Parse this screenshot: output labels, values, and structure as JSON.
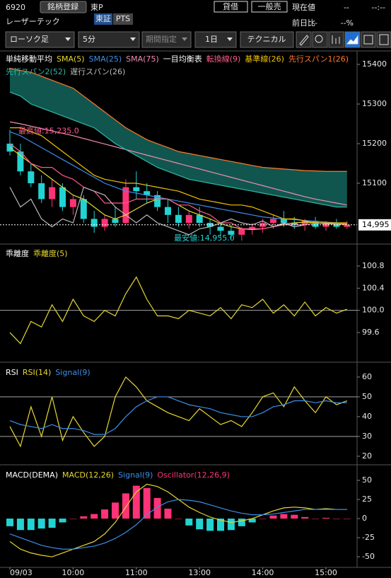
{
  "header": {
    "code": "6920",
    "register": "銘柄登録",
    "market": "東P",
    "lend": "貸借",
    "general": "一般売",
    "price_label": "現在値",
    "price": "--",
    "time": "--:--",
    "name": "レーザーテック",
    "tab1": "東証",
    "tab2": "PTS",
    "change_label": "前日比",
    "change": "--",
    "change_pct": "--%"
  },
  "toolbar": {
    "chart_type": "ローソク足",
    "interval": "5分",
    "period": "期間指定",
    "range": "1日",
    "technical": "テクニカル"
  },
  "chart_data": [
    {
      "type": "candlestick",
      "title": "単純移動平均",
      "ichimoku_title": "一目均衡表",
      "categories": [
        "09/03",
        null,
        null,
        null,
        null,
        null,
        "10:00",
        null,
        null,
        null,
        null,
        null,
        "11:00",
        null,
        null,
        null,
        null,
        null,
        "13:00",
        null,
        null,
        null,
        null,
        null,
        "14:00",
        null,
        null,
        null,
        null,
        null,
        "15:00",
        null,
        null
      ],
      "up_color": "#ff3377",
      "down_color": "#22d3d3",
      "ohlc": [
        [
          15200,
          15235,
          15170,
          15180
        ],
        [
          15180,
          15200,
          15120,
          15130
        ],
        [
          15130,
          15150,
          15090,
          15100
        ],
        [
          15100,
          15120,
          15050,
          15060
        ],
        [
          15060,
          15110,
          15040,
          15090
        ],
        [
          15090,
          15100,
          15030,
          15040
        ],
        [
          15040,
          15070,
          15020,
          15060
        ],
        [
          15060,
          15070,
          15000,
          15010
        ],
        [
          15010,
          15030,
          14975,
          14990
        ],
        [
          14990,
          15020,
          14980,
          15010
        ],
        [
          15010,
          15040,
          14990,
          15000
        ],
        [
          15000,
          15110,
          14995,
          15090
        ],
        [
          15090,
          15130,
          15060,
          15080
        ],
        [
          15080,
          15100,
          15050,
          15070
        ],
        [
          15070,
          15080,
          15030,
          15040
        ],
        [
          15040,
          15060,
          15000,
          15020
        ],
        [
          15020,
          15040,
          14990,
          15000
        ],
        [
          15000,
          15030,
          14985,
          15020
        ],
        [
          15020,
          15040,
          14990,
          15000
        ],
        [
          15000,
          15010,
          14970,
          14990
        ],
        [
          14990,
          15000,
          14965,
          14980
        ],
        [
          14980,
          14995,
          14960,
          14970
        ],
        [
          14970,
          14990,
          14955,
          14985
        ],
        [
          14985,
          15000,
          14970,
          14990
        ],
        [
          14990,
          15010,
          14975,
          15000
        ],
        [
          15000,
          15020,
          14985,
          15010
        ],
        [
          15010,
          15030,
          14990,
          15000
        ],
        [
          15000,
          15015,
          14985,
          14995
        ],
        [
          14995,
          15010,
          14980,
          15005
        ],
        [
          15005,
          15015,
          14985,
          14990
        ],
        [
          14990,
          15005,
          14980,
          15000
        ],
        [
          15000,
          15010,
          14985,
          14990
        ],
        [
          14990,
          15005,
          14985,
          14995
        ]
      ],
      "series": [
        {
          "name": "SMA(5)",
          "color": "#e6d830",
          "values": [
            15190,
            15170,
            15150,
            15130,
            15110,
            15090,
            15070,
            15060,
            15040,
            15020,
            15010,
            15020,
            15035,
            15050,
            15060,
            15060,
            15045,
            15030,
            15020,
            15010,
            14998,
            14990,
            14985,
            14983,
            14985,
            14990,
            14997,
            15000,
            15002,
            15000,
            14998,
            14997,
            14996
          ]
        },
        {
          "name": "SMA(25)",
          "color": "#3d8ee8",
          "values": [
            15230,
            15220,
            15205,
            15190,
            15175,
            15160,
            15145,
            15130,
            15115,
            15100,
            15090,
            15080,
            15075,
            15070,
            15065,
            15060,
            15055,
            15050,
            15045,
            15040,
            15035,
            15030,
            15025,
            15020,
            15015,
            15012,
            15010,
            15008,
            15006,
            15004,
            15002,
            15000,
            14999
          ]
        },
        {
          "name": "SMA(75)",
          "color": "#f08cb4",
          "values": [
            15255,
            15250,
            15244,
            15238,
            15232,
            15226,
            15220,
            15213,
            15206,
            15199,
            15192,
            15185,
            15178,
            15171,
            15164,
            15157,
            15150,
            15143,
            15136,
            15129,
            15122,
            15115,
            15108,
            15101,
            15094,
            15087,
            15080,
            15073,
            15066,
            15060,
            15055,
            15050,
            15045
          ]
        },
        {
          "name": "転換線(9)",
          "color": "#ff5a8c",
          "values": [
            15200,
            15180,
            15150,
            15140,
            15140,
            15120,
            15110,
            15090,
            15080,
            15050,
            15050,
            15050,
            15060,
            15060,
            15060,
            15060,
            15045,
            15045,
            15030,
            15020,
            15000,
            15000,
            14985,
            14985,
            14985,
            14990,
            14995,
            14995,
            14995,
            15000,
            15000,
            14998,
            14998
          ]
        },
        {
          "name": "基準線(26)",
          "color": "#f2c200",
          "values": [
            15240,
            15240,
            15230,
            15220,
            15200,
            15180,
            15160,
            15140,
            15120,
            15110,
            15105,
            15100,
            15100,
            15095,
            15090,
            15085,
            15080,
            15070,
            15060,
            15055,
            15050,
            15045,
            15045,
            15040,
            15030,
            15020,
            15010,
            15010,
            15005,
            15000,
            15000,
            15000,
            15000
          ]
        },
        {
          "name": "先行スパン1(26)",
          "color": "#ff7a2a",
          "cloud": true,
          "values": [
            15390,
            15385,
            15380,
            15370,
            15360,
            15350,
            15340,
            15320,
            15300,
            15280,
            15260,
            15240,
            15225,
            15210,
            15200,
            15190,
            15180,
            15175,
            15170,
            15165,
            15160,
            15155,
            15150,
            15145,
            15140,
            15138,
            15136,
            15134,
            15132,
            15131,
            15130,
            15130,
            15130
          ]
        },
        {
          "name": "先行スパン2(52)",
          "color": "#2fb8a6",
          "cloud": true,
          "values": [
            15330,
            15320,
            15300,
            15290,
            15280,
            15270,
            15260,
            15250,
            15240,
            15220,
            15200,
            15185,
            15170,
            15155,
            15140,
            15130,
            15120,
            15110,
            15105,
            15100,
            15095,
            15090,
            15085,
            15080,
            15075,
            15070,
            15065,
            15060,
            15055,
            15050,
            15045,
            15040,
            15040
          ]
        },
        {
          "name": "遅行スパン(26)",
          "color": "#bbbbbb",
          "values": [
            15090,
            15040,
            15060,
            15010,
            14990,
            15010,
            15000,
            15090,
            15080,
            15070,
            15040,
            15020,
            15000,
            15020,
            15000,
            14990,
            14980,
            14970,
            14985,
            14990,
            15000,
            15010,
            15000,
            14995,
            15005,
            14990,
            15000,
            14990,
            14995,
            null,
            null,
            null,
            null
          ]
        }
      ],
      "cloud_color": "#14655c",
      "ylim": [
        14950,
        15434
      ],
      "yticks": [
        15400,
        15300,
        15200,
        15100
      ],
      "last_price": {
        "value": 14995,
        "label": "14,995"
      },
      "high_label": {
        "value": 15235,
        "label": "最高値:15,235.0"
      },
      "low_label": {
        "value": 14955,
        "label": "最安値:14,955.0"
      }
    },
    {
      "type": "line",
      "title": "乖離度",
      "series": [
        {
          "name": "乖離度(5)",
          "color": "#e6d830",
          "values": [
            99.6,
            99.4,
            99.8,
            99.7,
            100.1,
            99.8,
            100.2,
            99.9,
            99.8,
            100.0,
            99.9,
            100.3,
            100.6,
            100.2,
            99.9,
            99.9,
            99.85,
            100.0,
            99.95,
            99.9,
            100.05,
            99.85,
            100.1,
            100.05,
            100.2,
            99.95,
            100.1,
            99.9,
            100.15,
            99.9,
            100.05,
            99.95,
            100.02
          ]
        }
      ],
      "ylim": [
        99.09,
        101.17
      ],
      "yticks": [
        100.8,
        100.4,
        {
          "value": 100,
          "label": "100.0"
        },
        99.6
      ],
      "reference_lines": [
        100
      ]
    },
    {
      "type": "line",
      "title": "RSI",
      "series": [
        {
          "name": "RSI(14)",
          "color": "#e6d830",
          "values": [
            35,
            25,
            45,
            30,
            50,
            28,
            40,
            32,
            25,
            30,
            50,
            60,
            55,
            48,
            45,
            42,
            40,
            38,
            44,
            40,
            36,
            38,
            35,
            42,
            50,
            52,
            45,
            55,
            48,
            42,
            50,
            46,
            48
          ]
        },
        {
          "name": "Signal(9)",
          "color": "#3d8ee8",
          "values": [
            38,
            36,
            35,
            34,
            36,
            34,
            34,
            33,
            31,
            31,
            34,
            40,
            45,
            48,
            50,
            50,
            48,
            46,
            45,
            44,
            42,
            41,
            40,
            40,
            42,
            45,
            46,
            48,
            48,
            47,
            48,
            47,
            47
          ]
        }
      ],
      "ylim": [
        16.4,
        66.4
      ],
      "yticks": [
        60,
        50,
        40,
        30,
        20
      ],
      "reference_lines": [
        50,
        30
      ]
    },
    {
      "type": "macd",
      "title": "MACD(DEMA)",
      "series": [
        {
          "name": "MACD(12,26)",
          "color": "#e6d830",
          "values": [
            -30,
            -40,
            -45,
            -48,
            -50,
            -45,
            -40,
            -35,
            -30,
            -20,
            -5,
            15,
            35,
            45,
            42,
            35,
            25,
            15,
            8,
            2,
            -2,
            -5,
            -3,
            0,
            5,
            10,
            14,
            15,
            14,
            12,
            13,
            12,
            12
          ]
        },
        {
          "name": "Signal(9)",
          "color": "#3d8ee8",
          "values": [
            -20,
            -25,
            -30,
            -35,
            -38,
            -40,
            -40,
            -38,
            -36,
            -32,
            -26,
            -18,
            -8,
            5,
            15,
            22,
            25,
            24,
            22,
            18,
            14,
            10,
            7,
            5,
            5,
            6,
            8,
            10,
            12,
            12,
            12,
            12,
            12
          ]
        },
        {
          "name": "Oscillator(12,26,9)",
          "color": "#ff3377",
          "negative_color": "#22d3d3",
          "style": "bar",
          "values": [
            -10,
            -15,
            -15,
            -13,
            -12,
            -5,
            0,
            3,
            6,
            12,
            21,
            33,
            43,
            40,
            27,
            13,
            0,
            -9,
            -14,
            -16,
            -16,
            -15,
            -10,
            -5,
            0,
            4,
            6,
            5,
            2,
            0,
            1,
            0,
            0
          ]
        }
      ],
      "ylim": [
        -62,
        67.6
      ],
      "yticks": [
        50,
        25,
        0,
        -25,
        -50
      ]
    }
  ]
}
